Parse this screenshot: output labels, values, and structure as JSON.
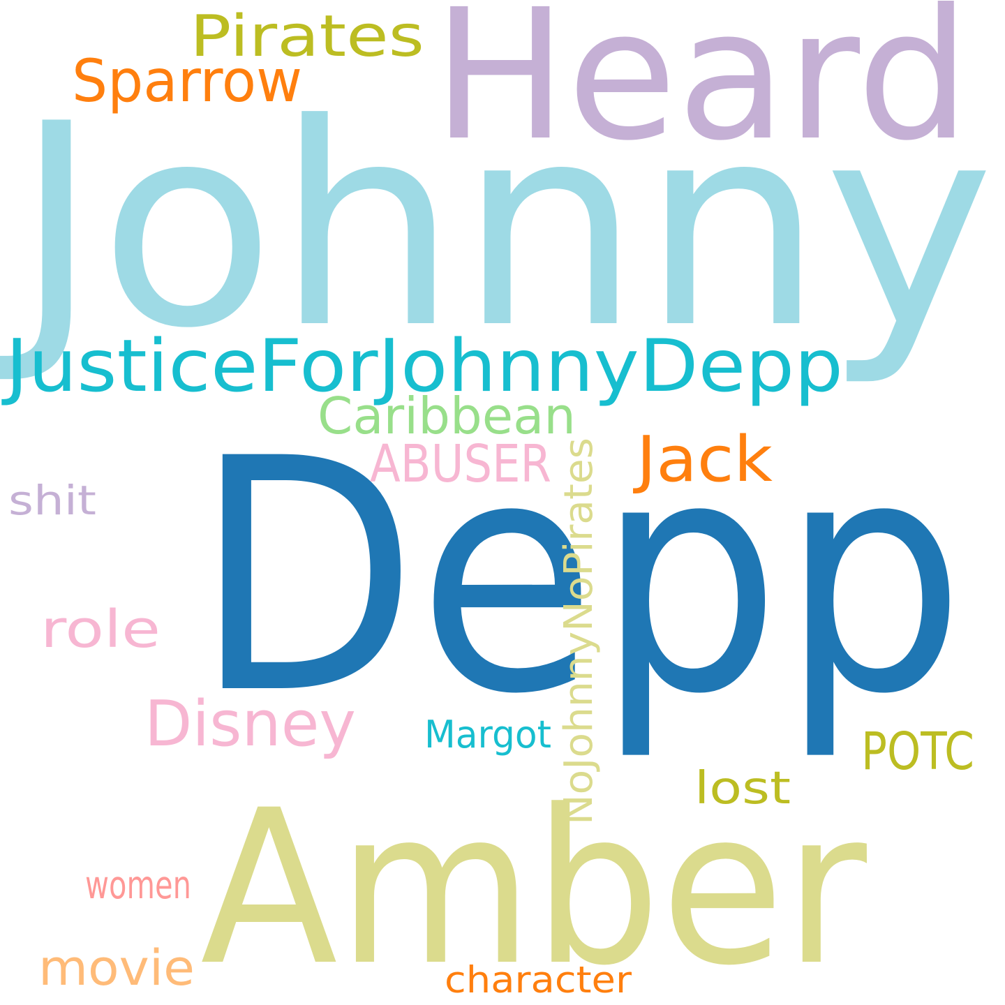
{
  "words": [
    {
      "id": "johnny",
      "text": "Johnny",
      "color": "#9edae5"
    },
    {
      "id": "depp",
      "text": "Depp",
      "color": "#1f77b4"
    },
    {
      "id": "heard",
      "text": "Heard",
      "color": "#c5b0d5"
    },
    {
      "id": "amber",
      "text": "Amber",
      "color": "#dbdb8d"
    },
    {
      "id": "justiceforjohnnydepp",
      "text": "JusticeForJohnnyDepp",
      "color": "#17becf"
    },
    {
      "id": "pirates",
      "text": "Pirates",
      "color": "#bcbd22"
    },
    {
      "id": "sparrow",
      "text": "Sparrow",
      "color": "#ff7f0e"
    },
    {
      "id": "caribbean",
      "text": "Caribbean",
      "color": "#98df8a"
    },
    {
      "id": "abuser",
      "text": "ABUSER",
      "color": "#f7b6d2"
    },
    {
      "id": "jack",
      "text": "Jack",
      "color": "#ff7f0e"
    },
    {
      "id": "nojohnnynopirates",
      "text": "NoJohnnyNoPirates",
      "color": "#dbdb8d"
    },
    {
      "id": "shit",
      "text": "shit",
      "color": "#c5b0d5"
    },
    {
      "id": "role",
      "text": "role",
      "color": "#f7b6d2"
    },
    {
      "id": "disney",
      "text": "Disney",
      "color": "#f7b6d2"
    },
    {
      "id": "margot",
      "text": "Margot",
      "color": "#17becf"
    },
    {
      "id": "potc",
      "text": "POTC",
      "color": "#bcbd22"
    },
    {
      "id": "lost",
      "text": "lost",
      "color": "#bcbd22"
    },
    {
      "id": "women",
      "text": "women",
      "color": "#ff9896"
    },
    {
      "id": "movie",
      "text": "movie",
      "color": "#ffbb78"
    },
    {
      "id": "character",
      "text": "character",
      "color": "#ff7f0e"
    }
  ]
}
